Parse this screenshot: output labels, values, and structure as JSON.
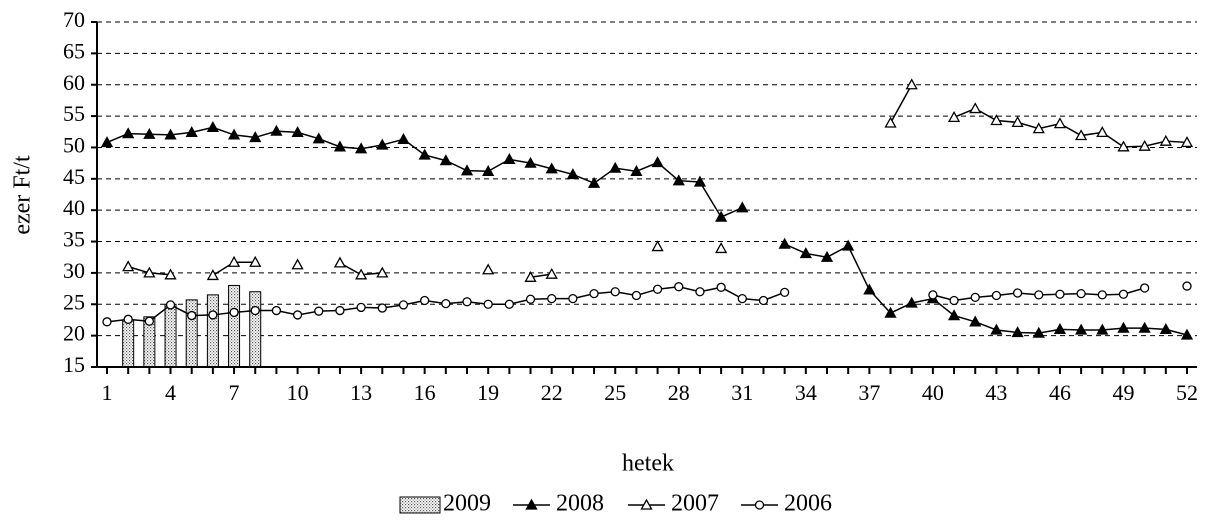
{
  "chart_data": {
    "type": "line",
    "y_label": "ezer Ft/t",
    "x_label": "hetek",
    "categories": [
      1,
      null,
      null,
      4,
      null,
      null,
      7,
      null,
      null,
      10,
      null,
      null,
      13,
      null,
      null,
      16,
      null,
      null,
      19,
      null,
      null,
      22,
      null,
      null,
      25,
      null,
      null,
      28,
      null,
      null,
      31,
      null,
      null,
      34,
      null,
      null,
      37,
      null,
      null,
      40,
      null,
      null,
      43,
      null,
      null,
      46,
      null,
      null,
      49,
      null,
      null,
      52
    ],
    "ylim": [
      15,
      70
    ],
    "yticks": [
      15,
      20,
      25,
      30,
      35,
      40,
      45,
      50,
      55,
      60,
      65,
      70
    ],
    "grid": true,
    "legend": "bottom",
    "series": [
      {
        "name": "2009",
        "type": "bar",
        "color": "#000000",
        "values": [
          null,
          22.5,
          23.0,
          25.0,
          25.7,
          26.5,
          28.0,
          27.0,
          null,
          null,
          null,
          null,
          null,
          null,
          null,
          null,
          null,
          null,
          null,
          null,
          null,
          null,
          null,
          null,
          null,
          null,
          null,
          null,
          null,
          null,
          null,
          null,
          null,
          null,
          null,
          null,
          null,
          null,
          null,
          null,
          null,
          null,
          null,
          null,
          null,
          null,
          null,
          null,
          null,
          null,
          null,
          null
        ]
      },
      {
        "name": "2008",
        "type": "line",
        "marker": "triangle",
        "marker_fill": "filled",
        "color": "#000000",
        "values": [
          50.8,
          52.2,
          52.1,
          52.0,
          52.4,
          53.2,
          52.0,
          51.6,
          52.6,
          52.4,
          51.4,
          50.1,
          49.8,
          50.4,
          51.3,
          48.8,
          47.9,
          46.3,
          46.2,
          48.1,
          47.5,
          46.6,
          45.7,
          44.3,
          46.7,
          46.2,
          47.6,
          44.7,
          44.5,
          38.9,
          40.4,
          null,
          34.6,
          33.1,
          32.5,
          34.3,
          27.3,
          23.6,
          25.2,
          25.9,
          23.2,
          22.2,
          20.9,
          20.5,
          20.4,
          21.0,
          20.9,
          20.9,
          21.2,
          21.2,
          21.0,
          20.1
        ]
      },
      {
        "name": "2007",
        "type": "line",
        "marker": "triangle",
        "marker_fill": "open",
        "color": "#000000",
        "values": [
          null,
          31.0,
          30.0,
          29.7,
          null,
          29.6,
          31.7,
          31.7,
          null,
          31.3,
          null,
          31.6,
          29.7,
          30.0,
          null,
          null,
          null,
          null,
          30.5,
          null,
          29.3,
          29.8,
          null,
          null,
          null,
          null,
          34.2,
          null,
          null,
          33.9,
          null,
          null,
          null,
          null,
          null,
          null,
          null,
          53.9,
          60.0,
          null,
          54.8,
          56.2,
          54.3,
          54.0,
          53.0,
          53.8,
          51.9,
          52.4,
          50.1,
          50.2,
          51.0,
          50.8
        ]
      },
      {
        "name": "2006",
        "type": "line",
        "marker": "circle",
        "marker_fill": "open",
        "color": "#000000",
        "values": [
          22.2,
          22.6,
          22.3,
          24.9,
          23.2,
          23.3,
          23.7,
          24.0,
          24.0,
          23.3,
          23.9,
          24.0,
          24.5,
          24.4,
          24.9,
          25.6,
          25.1,
          25.4,
          25.0,
          25.0,
          25.8,
          25.9,
          25.9,
          26.7,
          27.0,
          26.4,
          27.4,
          27.8,
          27.0,
          27.7,
          25.9,
          25.6,
          26.9,
          null,
          null,
          null,
          null,
          null,
          null,
          26.5,
          25.6,
          26.1,
          26.4,
          26.8,
          26.5,
          26.6,
          26.7,
          26.5,
          26.6,
          27.6,
          null,
          27.9
        ]
      }
    ]
  }
}
